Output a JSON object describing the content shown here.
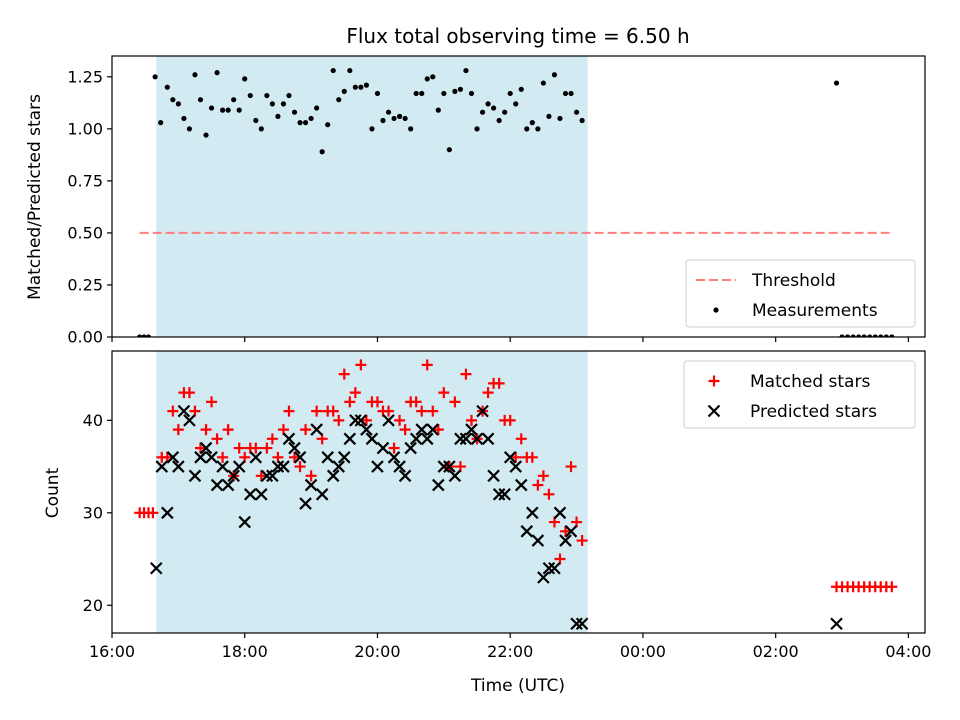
{
  "chart_data": [
    {
      "type": "scatter",
      "title": "Flux total observing time = 6.50 h",
      "ylabel": "Matched/Predicted stars",
      "xlabel": "",
      "xlim": [
        "16:00",
        "04:15"
      ],
      "ylim": [
        0,
        1.35
      ],
      "yticks": [
        "0.00",
        "0.25",
        "0.50",
        "0.75",
        "1.00",
        "1.25"
      ],
      "shaded_span": [
        "16:40",
        "23:10"
      ],
      "legend": [
        "Threshold",
        "Measurements"
      ],
      "legend_position": "lower right",
      "threshold": {
        "name": "Threshold",
        "value": 0.5,
        "x_start": "16:25",
        "x_end": "03:45",
        "color": "#ff7f7f"
      },
      "series": [
        {
          "name": "Measurements",
          "color": "#000000",
          "x": [
            "16:25",
            "16:29",
            "16:33",
            "16:39",
            "16:44",
            "16:50",
            "16:55",
            "17:00",
            "17:05",
            "17:10",
            "17:15",
            "17:20",
            "17:25",
            "17:30",
            "17:35",
            "17:40",
            "17:45",
            "17:50",
            "17:55",
            "18:00",
            "18:05",
            "18:10",
            "18:15",
            "18:20",
            "18:25",
            "18:30",
            "18:35",
            "18:40",
            "18:45",
            "18:50",
            "18:55",
            "19:00",
            "19:05",
            "19:10",
            "19:15",
            "19:20",
            "19:25",
            "19:30",
            "19:35",
            "19:40",
            "19:45",
            "19:50",
            "19:55",
            "20:00",
            "20:05",
            "20:10",
            "20:15",
            "20:20",
            "20:25",
            "20:30",
            "20:35",
            "20:40",
            "20:45",
            "20:50",
            "20:55",
            "21:00",
            "21:05",
            "21:10",
            "21:15",
            "21:20",
            "21:25",
            "21:30",
            "21:35",
            "21:40",
            "21:45",
            "21:50",
            "21:55",
            "22:00",
            "22:05",
            "22:10",
            "22:15",
            "22:20",
            "22:25",
            "22:30",
            "22:35",
            "22:40",
            "22:45",
            "22:50",
            "22:55",
            "23:00",
            "23:05",
            "02:55",
            "03:00",
            "03:05",
            "03:10",
            "03:15",
            "03:20",
            "03:25",
            "03:30",
            "03:35",
            "03:40",
            "03:45"
          ],
          "y": [
            0,
            0,
            0,
            1.25,
            1.03,
            1.2,
            1.14,
            1.12,
            1.05,
            1,
            1.26,
            1.14,
            0.97,
            1.1,
            1.27,
            1.09,
            1.09,
            1.14,
            1.09,
            1.24,
            1.16,
            1.04,
            1,
            1.16,
            1.12,
            1.06,
            1.12,
            1.16,
            1.08,
            1.03,
            1.03,
            1.05,
            1.1,
            0.89,
            1.02,
            1.28,
            1.14,
            1.18,
            1.28,
            1.2,
            1.2,
            1.21,
            1,
            1.17,
            1.04,
            1.08,
            1.05,
            1.06,
            1.05,
            1,
            1.17,
            1.17,
            1.24,
            1.25,
            1.09,
            1.17,
            0.9,
            1.18,
            1.19,
            1.28,
            1.17,
            1,
            1.08,
            1.12,
            1.1,
            1.04,
            1.08,
            1.17,
            1.12,
            1.19,
            1,
            1.03,
            1,
            1.22,
            1.06,
            1.26,
            1.05,
            1.17,
            1.17,
            1.08,
            1.04,
            1.22,
            0,
            0,
            0,
            0,
            0,
            0,
            0,
            0,
            0,
            0
          ]
        }
      ]
    },
    {
      "type": "scatter",
      "title": "",
      "ylabel": "Count",
      "xlabel": "Time (UTC)",
      "xlim": [
        "16:00",
        "04:15"
      ],
      "ylim": [
        17,
        47.5
      ],
      "yticks": [
        "20",
        "30",
        "40"
      ],
      "xticks": [
        "16:00",
        "18:00",
        "20:00",
        "22:00",
        "00:00",
        "02:00",
        "04:00"
      ],
      "shaded_span": [
        "16:40",
        "23:10"
      ],
      "legend": [
        "Matched stars",
        "Predicted stars"
      ],
      "legend_position": "upper right",
      "series": [
        {
          "name": "Matched stars",
          "marker": "+",
          "color": "#ff0000",
          "x": [
            "16:25",
            "16:29",
            "16:33",
            "16:37",
            "16:45",
            "16:50",
            "16:55",
            "17:00",
            "17:05",
            "17:10",
            "17:15",
            "17:20",
            "17:25",
            "17:30",
            "17:35",
            "17:40",
            "17:45",
            "17:50",
            "17:55",
            "18:00",
            "18:05",
            "18:10",
            "18:15",
            "18:20",
            "18:25",
            "18:30",
            "18:35",
            "18:40",
            "18:45",
            "18:50",
            "18:55",
            "19:00",
            "19:05",
            "19:10",
            "19:15",
            "19:20",
            "19:25",
            "19:30",
            "19:35",
            "19:40",
            "19:45",
            "19:50",
            "19:55",
            "20:00",
            "20:05",
            "20:10",
            "20:15",
            "20:20",
            "20:25",
            "20:30",
            "20:35",
            "20:40",
            "20:45",
            "20:50",
            "20:55",
            "21:00",
            "21:05",
            "21:10",
            "21:15",
            "21:20",
            "21:25",
            "21:30",
            "21:35",
            "21:40",
            "21:45",
            "21:50",
            "21:55",
            "22:00",
            "22:05",
            "22:10",
            "22:15",
            "22:20",
            "22:25",
            "22:30",
            "22:35",
            "22:40",
            "22:45",
            "22:50",
            "22:55",
            "23:00",
            "23:05",
            "02:55",
            "03:00",
            "03:05",
            "03:10",
            "03:15",
            "03:20",
            "03:25",
            "03:30",
            "03:35",
            "03:40",
            "03:45"
          ],
          "y": [
            30,
            30,
            30,
            30,
            36,
            36,
            41,
            39,
            43,
            43,
            41,
            37,
            39,
            42,
            38,
            36,
            39,
            34,
            37,
            36,
            37,
            37,
            34,
            37,
            38,
            36,
            39,
            41,
            36,
            35,
            39,
            34,
            41,
            38,
            41,
            41,
            40,
            45,
            42,
            43,
            46,
            40,
            42,
            42,
            41,
            41,
            37,
            40,
            39,
            42,
            42,
            41,
            46,
            41,
            39,
            43,
            35,
            42,
            35,
            45,
            40,
            38,
            41,
            43,
            44,
            44,
            40,
            40,
            36,
            38,
            36,
            36,
            33,
            34,
            32,
            29,
            25,
            28,
            35,
            29,
            27,
            22,
            22,
            22,
            22,
            22,
            22,
            22,
            22,
            22,
            22,
            22
          ]
        },
        {
          "name": "Predicted stars",
          "marker": "x",
          "color": "#000000",
          "x": [
            "16:40",
            "16:45",
            "16:50",
            "16:55",
            "17:00",
            "17:05",
            "17:10",
            "17:15",
            "17:20",
            "17:25",
            "17:30",
            "17:35",
            "17:40",
            "17:45",
            "17:50",
            "17:55",
            "18:00",
            "18:05",
            "18:10",
            "18:15",
            "18:20",
            "18:25",
            "18:30",
            "18:35",
            "18:40",
            "18:45",
            "18:50",
            "18:55",
            "19:00",
            "19:05",
            "19:10",
            "19:15",
            "19:20",
            "19:25",
            "19:30",
            "19:35",
            "19:40",
            "19:45",
            "19:50",
            "19:55",
            "20:00",
            "20:05",
            "20:10",
            "20:15",
            "20:20",
            "20:25",
            "20:30",
            "20:35",
            "20:40",
            "20:45",
            "20:50",
            "20:55",
            "21:00",
            "21:05",
            "21:10",
            "21:15",
            "21:20",
            "21:25",
            "21:30",
            "21:35",
            "21:40",
            "21:45",
            "21:50",
            "21:55",
            "22:00",
            "22:05",
            "22:10",
            "22:15",
            "22:20",
            "22:25",
            "22:30",
            "22:35",
            "22:40",
            "22:45",
            "22:50",
            "22:55",
            "23:00",
            "23:05",
            "02:55"
          ],
          "y": [
            24,
            35,
            30,
            36,
            35,
            41,
            40,
            34,
            36,
            37,
            36,
            33,
            35,
            33,
            34,
            35,
            29,
            32,
            36,
            32,
            34,
            34,
            35,
            35,
            38,
            37,
            36,
            31,
            33,
            39,
            32,
            36,
            34,
            35,
            36,
            38,
            40,
            40,
            39,
            38,
            35,
            37,
            40,
            36,
            35,
            34,
            37,
            38,
            39,
            38,
            39,
            33,
            35,
            35,
            34,
            38,
            38,
            39,
            38,
            41,
            38,
            34,
            32,
            32,
            36,
            35,
            33,
            28,
            30,
            27,
            23,
            24,
            24,
            30,
            27,
            28,
            18,
            18,
            18
          ]
        }
      ]
    }
  ],
  "colors": {
    "shade": "#add8e6",
    "threshold": "#ff7f7f",
    "matched": "#ff0000",
    "predicted": "#000000",
    "measurements": "#000000"
  }
}
